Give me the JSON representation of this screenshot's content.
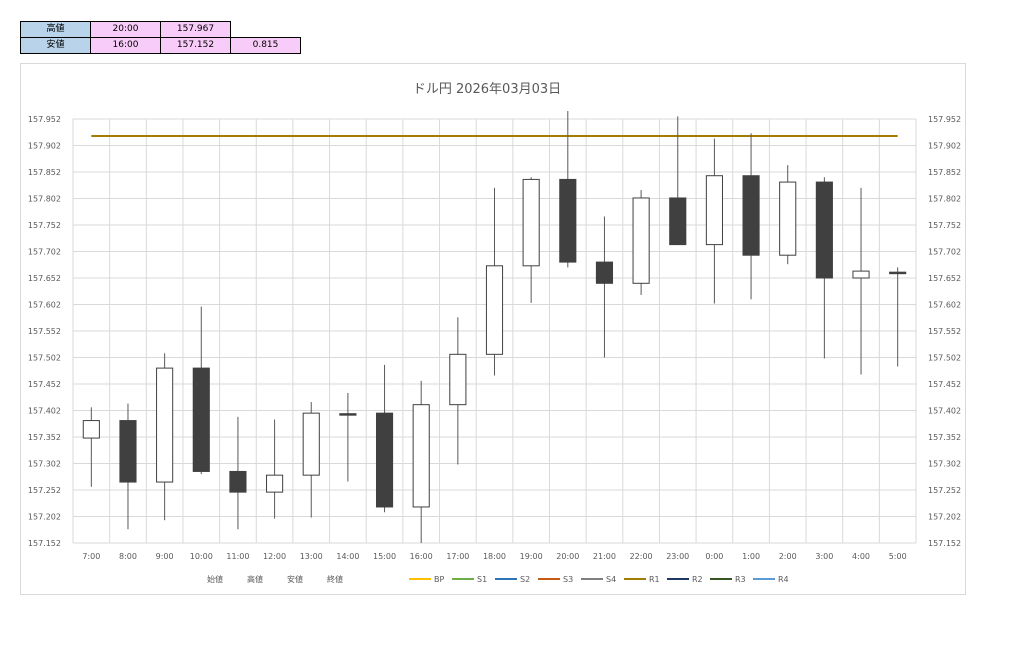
{
  "summary": {
    "high": {
      "label": "高値",
      "time": "20:00",
      "price": "157.967"
    },
    "low": {
      "label": "安値",
      "time": "16:00",
      "price": "157.152",
      "range": "0.815"
    }
  },
  "chart_data": {
    "type": "candlestick",
    "title": "ドル円 2026年03月03日",
    "categories": [
      "7:00",
      "8:00",
      "9:00",
      "10:00",
      "11:00",
      "12:00",
      "13:00",
      "14:00",
      "15:00",
      "16:00",
      "17:00",
      "18:00",
      "19:00",
      "20:00",
      "21:00",
      "22:00",
      "23:00",
      "0:00",
      "1:00",
      "2:00",
      "3:00",
      "4:00",
      "5:00"
    ],
    "ohlc": [
      {
        "open": 157.35,
        "high": 157.408,
        "low": 157.258,
        "close": 157.383
      },
      {
        "open": 157.383,
        "high": 157.415,
        "low": 157.178,
        "close": 157.267
      },
      {
        "open": 157.267,
        "high": 157.51,
        "low": 157.195,
        "close": 157.482
      },
      {
        "open": 157.482,
        "high": 157.598,
        "low": 157.282,
        "close": 157.287
      },
      {
        "open": 157.287,
        "high": 157.39,
        "low": 157.178,
        "close": 157.248
      },
      {
        "open": 157.248,
        "high": 157.385,
        "low": 157.198,
        "close": 157.28
      },
      {
        "open": 157.28,
        "high": 157.418,
        "low": 157.2,
        "close": 157.397
      },
      {
        "open": 157.396,
        "high": 157.435,
        "low": 157.268,
        "close": 157.394
      },
      {
        "open": 157.397,
        "high": 157.488,
        "low": 157.21,
        "close": 157.22
      },
      {
        "open": 157.22,
        "high": 157.458,
        "low": 157.152,
        "close": 157.413
      },
      {
        "open": 157.413,
        "high": 157.578,
        "low": 157.3,
        "close": 157.508
      },
      {
        "open": 157.508,
        "high": 157.822,
        "low": 157.468,
        "close": 157.675
      },
      {
        "open": 157.675,
        "high": 157.842,
        "low": 157.605,
        "close": 157.838
      },
      {
        "open": 157.838,
        "high": 157.967,
        "low": 157.672,
        "close": 157.682
      },
      {
        "open": 157.682,
        "high": 157.768,
        "low": 157.502,
        "close": 157.642
      },
      {
        "open": 157.642,
        "high": 157.818,
        "low": 157.62,
        "close": 157.803
      },
      {
        "open": 157.803,
        "high": 157.957,
        "low": 157.718,
        "close": 157.715
      },
      {
        "open": 157.715,
        "high": 157.915,
        "low": 157.604,
        "close": 157.845
      },
      {
        "open": 157.845,
        "high": 157.925,
        "low": 157.612,
        "close": 157.695
      },
      {
        "open": 157.695,
        "high": 157.865,
        "low": 157.678,
        "close": 157.833
      },
      {
        "open": 157.833,
        "high": 157.842,
        "low": 157.5,
        "close": 157.652
      },
      {
        "open": 157.652,
        "high": 157.822,
        "low": 157.47,
        "close": 157.665
      },
      {
        "open": 157.663,
        "high": 157.672,
        "low": 157.485,
        "close": 157.661
      }
    ],
    "y_ticks": [
      "157.152",
      "157.202",
      "157.252",
      "157.302",
      "157.352",
      "157.402",
      "157.452",
      "157.502",
      "157.552",
      "157.602",
      "157.652",
      "157.702",
      "157.752",
      "157.802",
      "157.852",
      "157.902",
      "157.952"
    ],
    "ylim": [
      157.152,
      157.952
    ],
    "lines": [
      {
        "name": "R1",
        "value": 157.92,
        "color": "#a07d00"
      }
    ],
    "grid": true,
    "legend": {
      "position": "bottom",
      "text_items": [
        "始値",
        "高値",
        "安値",
        "終値"
      ],
      "line_items": [
        {
          "name": "BP",
          "color": "#ffc000"
        },
        {
          "name": "S1",
          "color": "#70ad47"
        },
        {
          "name": "S2",
          "color": "#2e75b6"
        },
        {
          "name": "S3",
          "color": "#c55a11"
        },
        {
          "name": "S4",
          "color": "#7f7f7f"
        },
        {
          "name": "R1",
          "color": "#a07d00"
        },
        {
          "name": "R2",
          "color": "#203864"
        },
        {
          "name": "R3",
          "color": "#375623"
        },
        {
          "name": "R4",
          "color": "#5b9bd5"
        }
      ]
    }
  }
}
